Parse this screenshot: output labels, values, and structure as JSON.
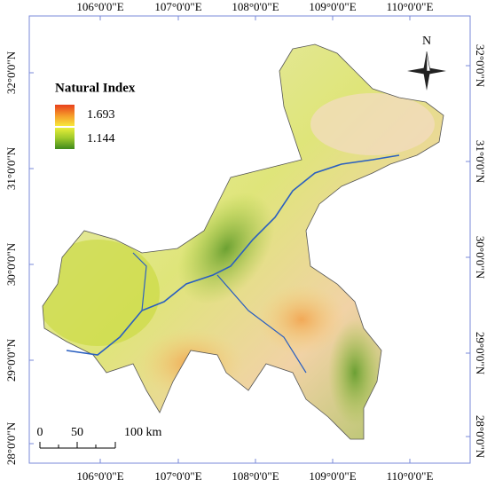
{
  "frame": {
    "longitude_labels": [
      "106°0'0\"E",
      "107°0'0\"E",
      "108°0'0\"E",
      "109°0'0\"E",
      "110°0'0\"E"
    ],
    "latitude_labels": [
      "32°0'0\"N",
      "31°0'0\"N",
      "30°0'0\"N",
      "29°0'0\"N",
      "28°0'0\"N"
    ]
  },
  "legend": {
    "title": "Natural Index",
    "high": "1.693",
    "low": "1.144"
  },
  "north_arrow": {
    "label": "N"
  },
  "scale_bar": {
    "labels": [
      "0",
      "50",
      "100 km"
    ]
  }
}
